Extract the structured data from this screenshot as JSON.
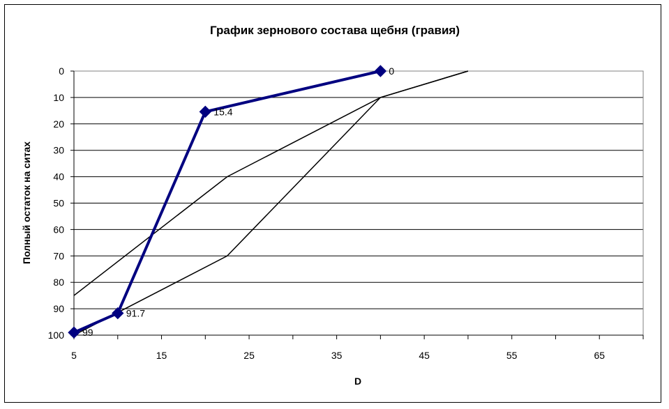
{
  "chart_data": {
    "type": "line",
    "title": "График зернового состава щебня (гравия)",
    "xlabel": "D",
    "ylabel": "Полный остаток на ситах",
    "xlim": [
      5,
      70
    ],
    "ylim": [
      0,
      100
    ],
    "y_reversed": true,
    "x_ticks": [
      "5",
      "15",
      "25",
      "35",
      "45",
      "55",
      "65"
    ],
    "y_ticks": [
      "0",
      "10",
      "20",
      "30",
      "40",
      "50",
      "60",
      "70",
      "80",
      "90",
      "100"
    ],
    "grid": "horizontal",
    "legend": "none",
    "series": [
      {
        "color": "#000000",
        "x": [
          5,
          22.5,
          40,
          50
        ],
        "y": [
          85,
          40,
          10,
          0
        ]
      },
      {
        "color": "#000000",
        "x": [
          5,
          22.5,
          40,
          50
        ],
        "y": [
          100,
          70,
          10,
          0
        ]
      },
      {
        "color": "#000080",
        "marker": "diamond",
        "x": [
          5,
          10,
          20,
          40
        ],
        "y": [
          99,
          91.7,
          15.4,
          0
        ],
        "labels": [
          "99",
          "91.7",
          "15.4",
          "0"
        ]
      }
    ]
  }
}
